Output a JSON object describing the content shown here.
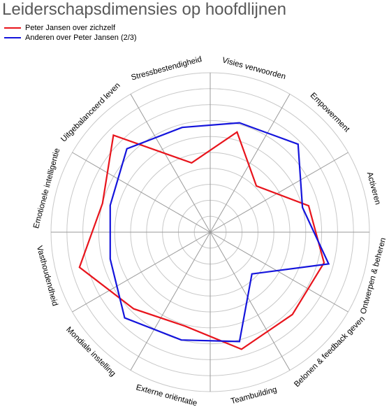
{
  "chart_data": {
    "type": "radar",
    "title": "Leiderschapsdimensies op hoofdlijnen",
    "axes": [
      "Visies verwoorden",
      "Empowerment",
      "Activeren",
      "Ontwerpen & beheren",
      "Belonen & feedback geven",
      "Teambuilding",
      "Externe oriëntatie",
      "Mondiale instelling",
      "Vasthoudendheid",
      "Emotionele intelligentie",
      "Uitgebalanceerd leven",
      "Stressbestendigheid"
    ],
    "rlim": [
      0,
      10
    ],
    "grid_rings": 10,
    "series": [
      {
        "name": "Peter Jansen over zichzelf",
        "color": "#e8141c",
        "values": [
          6.5,
          4.1,
          6.4,
          7.4,
          7.3,
          7.6,
          6.1,
          6.8,
          8.5,
          7.0,
          8.6,
          4.5
        ]
      },
      {
        "name": "Anderen over Peter Jansen (2/3)",
        "color": "#1414dc",
        "values": [
          7.1,
          7.8,
          6.0,
          7.7,
          3.7,
          7.1,
          7.0,
          7.6,
          6.5,
          6.5,
          7.4,
          6.8
        ]
      }
    ],
    "legend": "top-left"
  }
}
